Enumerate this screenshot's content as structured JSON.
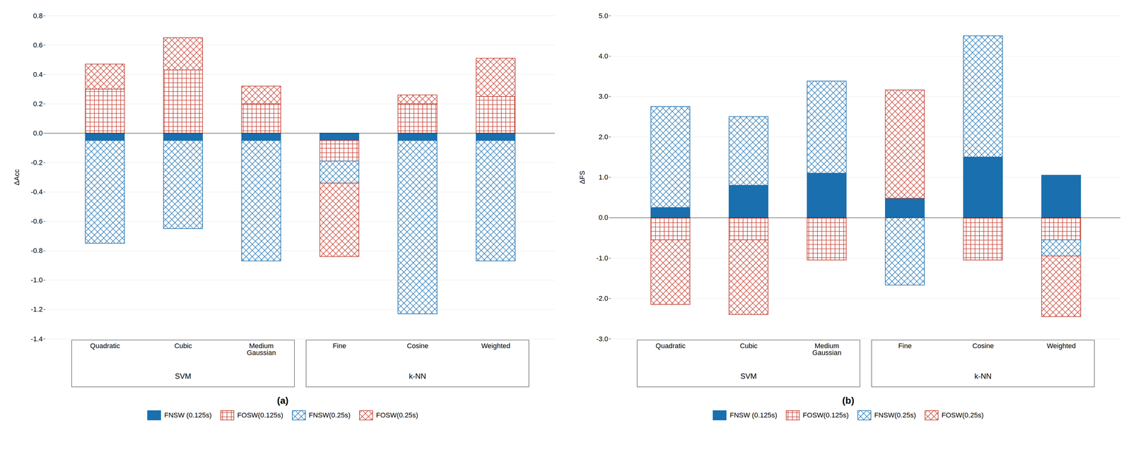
{
  "chart_data": [
    {
      "type": "bar",
      "title": "(a)",
      "ylabel": "ΔAcc",
      "stacked": true,
      "grid": true,
      "legend": "bottom",
      "categories": [
        "Quadratic",
        "Cubic",
        "Medium\nGaussian",
        "Fine",
        "Cosine",
        "Weighted"
      ],
      "groups": [
        {
          "name": "SVM",
          "categories": [
            "Quadratic",
            "Cubic",
            "Medium\nGaussian"
          ]
        },
        {
          "name": "k-NN",
          "categories": [
            "Fine",
            "Cosine",
            "Weighted"
          ]
        }
      ],
      "series": [
        {
          "name": "FNSW (0.125s)",
          "color": "#1a6faf",
          "values": [
            -0.05,
            -0.05,
            -0.05,
            -0.05,
            -0.05,
            -0.05
          ]
        },
        {
          "name": "FOSW(0.125s)",
          "color": "#c0392b",
          "values": [
            0.3,
            0.43,
            0.2,
            -0.14,
            0.2,
            0.25
          ]
        },
        {
          "name": "FNSW(0.25s)",
          "color": "#1a6faf",
          "values": [
            -0.7,
            -0.6,
            -0.82,
            -0.15,
            -1.18,
            -0.82
          ]
        },
        {
          "name": "FOSW(0.25s)",
          "color": "#c0392b",
          "values": [
            0.17,
            0.22,
            0.12,
            -0.5,
            0.06,
            0.26
          ]
        }
      ],
      "ylim": [
        -1.4,
        0.8
      ],
      "yticks": [
        -1.4,
        -1.2,
        {
          "value": -1.0,
          "label": "-1.0"
        },
        -0.8,
        -0.6,
        -0.4,
        -0.2,
        {
          "value": 0.0,
          "label": "0.0"
        },
        0.2,
        0.4,
        0.6,
        0.8
      ]
    },
    {
      "type": "bar",
      "title": "(b)",
      "ylabel": "ΔFS",
      "stacked": true,
      "grid": true,
      "legend": "bottom",
      "categories": [
        "Quadratic",
        "Cubic",
        "Medium\nGaussian",
        "Fine",
        "Cosine",
        "Weighted"
      ],
      "groups": [
        {
          "name": "SVM",
          "categories": [
            "Quadratic",
            "Cubic",
            "Medium\nGaussian"
          ]
        },
        {
          "name": "k-NN",
          "categories": [
            "Fine",
            "Cosine",
            "Weighted"
          ]
        }
      ],
      "series": [
        {
          "name": "FNSW (0.125s)",
          "color": "#1a6faf",
          "values": [
            0.25,
            0.8,
            1.1,
            0.48,
            1.5,
            1.05
          ]
        },
        {
          "name": "FOSW(0.125s)",
          "color": "#c0392b",
          "values": [
            -0.55,
            -0.55,
            -1.05,
            0.0,
            -1.05,
            -0.55
          ]
        },
        {
          "name": "FNSW(0.25s)",
          "color": "#1a6faf",
          "values": [
            2.5,
            1.7,
            2.28,
            -1.67,
            3.0,
            -0.4
          ]
        },
        {
          "name": "FOSW(0.25s)",
          "color": "#c0392b",
          "values": [
            -1.6,
            -1.85,
            0.0,
            2.68,
            0.0,
            -1.5
          ]
        }
      ],
      "ylim": [
        -3.0,
        5.0
      ],
      "yticks": [
        {
          "value": -3.0,
          "label": "-3.0"
        },
        {
          "value": -2.0,
          "label": "-2.0"
        },
        {
          "value": -1.0,
          "label": "-1.0"
        },
        {
          "value": 0.0,
          "label": "0.0"
        },
        {
          "value": 1.0,
          "label": "1.0"
        },
        {
          "value": 2.0,
          "label": "2.0"
        },
        {
          "value": 3.0,
          "label": "3.0"
        },
        {
          "value": 4.0,
          "label": "4.0"
        },
        {
          "value": 5.0,
          "label": "5.0"
        }
      ]
    }
  ]
}
